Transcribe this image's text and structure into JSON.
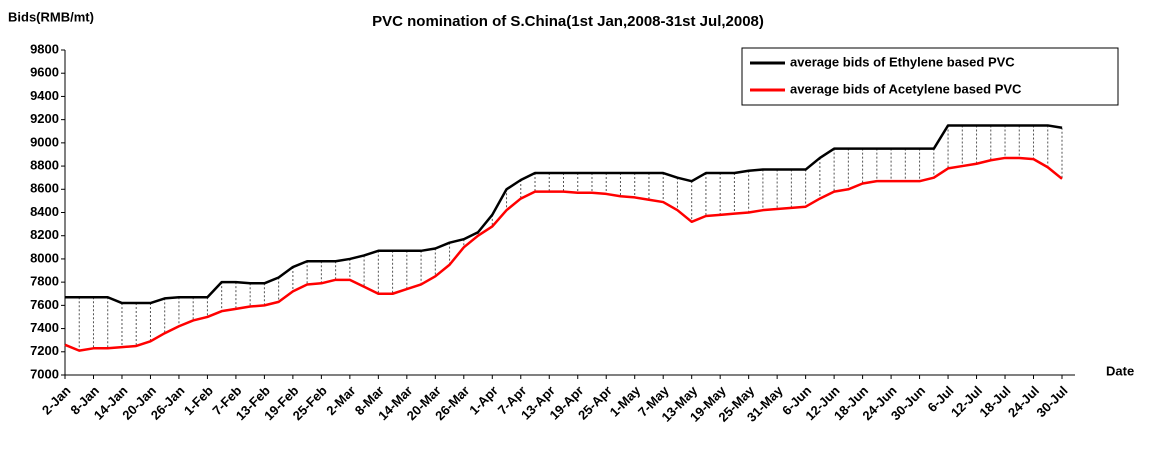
{
  "chart_data": {
    "type": "line",
    "title": "PVC nomination of S.China(1st Jan,2008-31st Jul,2008)",
    "y_label": "Bids(RMB/mt)",
    "x_label": "Date",
    "categories": [
      "2-Jan",
      null,
      "8-Jan",
      null,
      "14-Jan",
      null,
      "20-Jan",
      null,
      "26-Jan",
      null,
      "1-Feb",
      null,
      "7-Feb",
      null,
      "13-Feb",
      null,
      "19-Feb",
      null,
      "25-Feb",
      null,
      "2-Mar",
      null,
      "8-Mar",
      null,
      "14-Mar",
      null,
      "20-Mar",
      null,
      "26-Mar",
      null,
      "1-Apr",
      null,
      "7-Apr",
      null,
      "13-Apr",
      null,
      "19-Apr",
      null,
      "25-Apr",
      null,
      "1-May",
      null,
      "7-May",
      null,
      "13-May",
      null,
      "19-May",
      null,
      "25-May",
      null,
      "31-May",
      null,
      "6-Jun",
      null,
      "12-Jun",
      null,
      "18-Jun",
      null,
      "24-Jun",
      null,
      "30-Jun",
      null,
      "6-Jul",
      null,
      "12-Jul",
      null,
      "18-Jul",
      null,
      "24-Jul",
      null,
      "30-Jul"
    ],
    "series": [
      {
        "name": "average bids of Ethylene based PVC",
        "color": "#000000",
        "values": [
          7670,
          7670,
          7670,
          7670,
          7620,
          7620,
          7620,
          7660,
          7670,
          7670,
          7670,
          7800,
          7800,
          7790,
          7790,
          7840,
          7930,
          7980,
          7980,
          7980,
          8000,
          8030,
          8070,
          8070,
          8070,
          8070,
          8090,
          8140,
          8170,
          8230,
          8380,
          8600,
          8680,
          8740,
          8740,
          8740,
          8740,
          8740,
          8740,
          8740,
          8740,
          8740,
          8740,
          8700,
          8670,
          8740,
          8740,
          8740,
          8760,
          8770,
          8770,
          8770,
          8770,
          8870,
          8950,
          8950,
          8950,
          8950,
          8950,
          8950,
          8950,
          8950,
          9150,
          9150,
          9150,
          9150,
          9150,
          9150,
          9150,
          9150,
          9130
        ]
      },
      {
        "name": "average bids of Acetylene based PVC",
        "color": "#ff0000",
        "values": [
          7260,
          7210,
          7230,
          7230,
          7240,
          7250,
          7290,
          7360,
          7420,
          7470,
          7500,
          7550,
          7570,
          7590,
          7600,
          7630,
          7720,
          7780,
          7790,
          7820,
          7820,
          7760,
          7700,
          7700,
          7740,
          7780,
          7850,
          7950,
          8100,
          8200,
          8280,
          8420,
          8520,
          8580,
          8580,
          8580,
          8570,
          8570,
          8560,
          8540,
          8530,
          8510,
          8490,
          8420,
          8320,
          8370,
          8380,
          8390,
          8400,
          8420,
          8430,
          8440,
          8450,
          8520,
          8580,
          8600,
          8650,
          8670,
          8670,
          8670,
          8670,
          8700,
          8780,
          8800,
          8820,
          8850,
          8870,
          8870,
          8860,
          8790,
          8690
        ]
      }
    ],
    "ylim": [
      7000,
      9800
    ],
    "yticks": [
      7000,
      7200,
      7400,
      7600,
      7800,
      8000,
      8200,
      8400,
      8600,
      8800,
      9000,
      9200,
      9400,
      9600,
      9800
    ],
    "legend": "upper right"
  }
}
